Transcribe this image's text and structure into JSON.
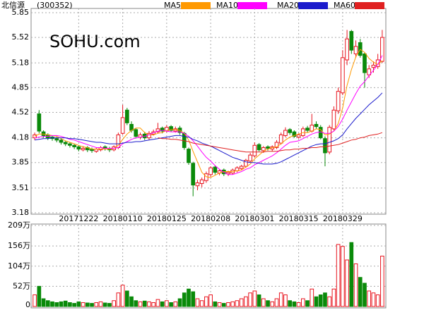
{
  "chart_data": {
    "type": "candlestick",
    "title": "北信源",
    "code": "(300352)",
    "watermark": "SOHU.com",
    "categories": [
      null,
      null,
      null,
      null,
      null,
      null,
      null,
      null,
      null,
      null,
      "20171222",
      null,
      null,
      null,
      null,
      null,
      null,
      null,
      null,
      null,
      "20180110",
      null,
      null,
      null,
      null,
      null,
      null,
      null,
      null,
      null,
      "20180125",
      null,
      null,
      null,
      null,
      null,
      null,
      null,
      null,
      null,
      "20180208",
      null,
      null,
      null,
      null,
      null,
      null,
      null,
      null,
      null,
      "20180301",
      null,
      null,
      null,
      null,
      null,
      null,
      null,
      null,
      null,
      "20180315",
      null,
      null,
      null,
      null,
      null,
      null,
      null,
      null,
      null,
      "20180329",
      null,
      null,
      null,
      null,
      null,
      null,
      null,
      null,
      null
    ],
    "open": [
      4.18,
      4.5,
      4.26,
      4.22,
      4.19,
      4.17,
      4.15,
      4.12,
      4.1,
      4.08,
      4.06,
      4.02,
      4.05,
      4.03,
      4.0,
      4.02,
      4.06,
      4.04,
      4.02,
      4.05,
      4.24,
      4.55,
      4.36,
      4.29,
      4.19,
      4.23,
      4.18,
      4.23,
      4.26,
      4.31,
      4.27,
      4.33,
      4.27,
      4.31,
      4.24,
      4.03,
      3.84,
      3.54,
      3.57,
      3.61,
      3.69,
      3.79,
      3.71,
      3.75,
      3.7,
      3.71,
      3.74,
      3.77,
      3.8,
      3.87,
      3.94,
      4.09,
      4.01,
      4.06,
      4.03,
      4.05,
      4.11,
      4.21,
      4.29,
      4.26,
      4.19,
      4.21,
      4.31,
      4.27,
      4.36,
      4.32,
      4.17,
      3.99,
      4.3,
      4.54,
      4.78,
      5.22,
      5.6,
      5.3,
      5.45,
      5.3,
      5.02,
      5.12,
      5.13,
      5.2
    ],
    "high": [
      4.25,
      4.55,
      4.28,
      4.24,
      4.21,
      4.19,
      4.17,
      4.14,
      4.12,
      4.1,
      4.08,
      4.07,
      4.07,
      4.05,
      4.05,
      4.07,
      4.08,
      4.06,
      4.08,
      4.25,
      4.62,
      4.58,
      4.4,
      4.31,
      4.25,
      4.26,
      4.27,
      4.29,
      4.38,
      4.33,
      4.35,
      4.35,
      4.33,
      4.34,
      4.26,
      4.05,
      3.86,
      3.62,
      3.65,
      3.73,
      3.8,
      3.81,
      3.76,
      3.77,
      3.74,
      3.77,
      3.8,
      3.82,
      3.9,
      3.98,
      4.12,
      4.11,
      4.07,
      4.08,
      4.08,
      4.15,
      4.25,
      4.32,
      4.31,
      4.28,
      4.24,
      4.33,
      4.34,
      4.5,
      4.4,
      4.35,
      4.2,
      4.35,
      4.6,
      4.85,
      5.35,
      5.62,
      5.62,
      5.48,
      5.5,
      5.32,
      5.15,
      5.2,
      5.3,
      5.62
    ],
    "low": [
      4.15,
      4.24,
      4.18,
      4.15,
      4.14,
      4.12,
      4.09,
      4.07,
      4.05,
      4.03,
      4.0,
      4.0,
      3.99,
      3.98,
      3.98,
      4.0,
      4.01,
      3.99,
      4.0,
      4.03,
      4.22,
      4.35,
      4.25,
      4.17,
      4.16,
      4.15,
      4.15,
      4.21,
      4.24,
      4.24,
      4.25,
      4.26,
      4.25,
      4.22,
      4.02,
      3.82,
      3.4,
      3.48,
      3.52,
      3.58,
      3.66,
      3.69,
      3.68,
      3.67,
      3.67,
      3.69,
      3.72,
      3.75,
      3.78,
      3.85,
      3.92,
      4.0,
      3.98,
      4.01,
      4.0,
      4.03,
      4.09,
      4.19,
      4.22,
      4.18,
      4.17,
      4.19,
      4.25,
      4.25,
      4.3,
      4.16,
      3.8,
      3.96,
      4.28,
      4.5,
      4.75,
      5.15,
      5.3,
      5.25,
      5.25,
      4.85,
      4.98,
      5.05,
      5.1,
      5.18
    ],
    "close": [
      4.22,
      4.27,
      4.21,
      4.18,
      4.17,
      4.15,
      4.12,
      4.1,
      4.08,
      4.06,
      4.03,
      4.04,
      4.02,
      4.01,
      4.03,
      4.05,
      4.04,
      4.02,
      4.06,
      4.22,
      4.45,
      4.38,
      4.28,
      4.2,
      4.22,
      4.18,
      4.24,
      4.26,
      4.3,
      4.27,
      4.32,
      4.28,
      4.3,
      4.25,
      4.05,
      3.85,
      3.55,
      3.58,
      3.62,
      3.7,
      3.78,
      3.72,
      3.74,
      3.7,
      3.72,
      3.75,
      3.78,
      3.8,
      3.88,
      3.95,
      4.08,
      4.02,
      4.05,
      4.04,
      4.06,
      4.12,
      4.22,
      4.28,
      4.25,
      4.2,
      4.22,
      4.3,
      4.28,
      4.35,
      4.33,
      4.18,
      3.98,
      4.32,
      4.55,
      4.8,
      5.25,
      5.5,
      5.35,
      5.4,
      5.28,
      5.05,
      5.1,
      5.15,
      5.22,
      5.52
    ],
    "volume": [
      30,
      52,
      20,
      15,
      12,
      10,
      12,
      14,
      10,
      8,
      12,
      10,
      9,
      8,
      10,
      12,
      9,
      8,
      15,
      35,
      55,
      40,
      25,
      15,
      12,
      14,
      12,
      10,
      18,
      12,
      15,
      10,
      12,
      20,
      35,
      45,
      38,
      20,
      15,
      25,
      30,
      12,
      10,
      8,
      10,
      12,
      15,
      20,
      25,
      35,
      40,
      30,
      20,
      15,
      12,
      20,
      35,
      30,
      15,
      12,
      10,
      20,
      15,
      45,
      25,
      30,
      35,
      25,
      45,
      160,
      155,
      120,
      165,
      110,
      75,
      60,
      40,
      35,
      30,
      130
    ],
    "up_color": "#e8141e",
    "down_color": "#0a8a0a",
    "series": [
      {
        "name": "MA5",
        "color": "#ff9900",
        "values": [
          4.2,
          4.23,
          4.23,
          4.22,
          4.21,
          4.2,
          4.17,
          4.14,
          4.12,
          4.1,
          4.08,
          4.06,
          4.05,
          4.03,
          4.03,
          4.03,
          4.03,
          4.03,
          4.04,
          4.08,
          4.16,
          4.23,
          4.28,
          4.31,
          4.31,
          4.25,
          4.22,
          4.22,
          4.24,
          4.25,
          4.28,
          4.29,
          4.29,
          4.28,
          4.24,
          4.15,
          4.0,
          3.86,
          3.72,
          3.66,
          3.65,
          3.68,
          3.71,
          3.73,
          3.73,
          3.73,
          3.74,
          3.75,
          3.79,
          3.83,
          3.9,
          3.95,
          4.0,
          4.03,
          4.05,
          4.06,
          4.1,
          4.15,
          4.19,
          4.21,
          4.23,
          4.25,
          4.25,
          4.27,
          4.3,
          4.29,
          4.22,
          4.23,
          4.27,
          4.37,
          4.58,
          4.88,
          5.09,
          5.26,
          5.36,
          5.32,
          5.24,
          5.19,
          5.16,
          5.21
        ]
      },
      {
        "name": "MA10",
        "color": "#ff00ff",
        "values": [
          4.18,
          4.19,
          4.2,
          4.2,
          4.21,
          4.21,
          4.2,
          4.18,
          4.16,
          4.15,
          4.13,
          4.11,
          4.09,
          4.07,
          4.05,
          4.05,
          4.04,
          4.04,
          4.04,
          4.05,
          4.1,
          4.13,
          4.16,
          4.18,
          4.19,
          4.2,
          4.22,
          4.25,
          4.27,
          4.28,
          4.27,
          4.26,
          4.26,
          4.26,
          4.24,
          4.2,
          4.14,
          4.07,
          3.99,
          3.92,
          3.87,
          3.81,
          3.76,
          3.72,
          3.69,
          3.69,
          3.71,
          3.73,
          3.76,
          3.78,
          3.82,
          3.85,
          3.88,
          3.91,
          3.94,
          3.98,
          4.03,
          4.08,
          4.12,
          4.13,
          4.14,
          4.17,
          4.2,
          4.23,
          4.25,
          4.26,
          4.24,
          4.24,
          4.27,
          4.33,
          4.43,
          4.55,
          4.66,
          4.77,
          4.87,
          4.93,
          5.01,
          5.08,
          5.16,
          5.28
        ]
      },
      {
        "name": "MA20",
        "color": "#1a1acc",
        "values": [
          4.15,
          4.16,
          4.17,
          4.17,
          4.18,
          4.18,
          4.18,
          4.18,
          4.17,
          4.17,
          4.16,
          4.15,
          4.14,
          4.13,
          4.12,
          4.12,
          4.11,
          4.1,
          4.1,
          4.1,
          4.11,
          4.12,
          4.12,
          4.13,
          4.13,
          4.14,
          4.15,
          4.16,
          4.17,
          4.18,
          4.19,
          4.2,
          4.21,
          4.21,
          4.2,
          4.19,
          4.16,
          4.14,
          4.11,
          4.09,
          4.07,
          4.04,
          4.01,
          3.98,
          3.95,
          3.92,
          3.9,
          3.88,
          3.86,
          3.85,
          3.85,
          3.84,
          3.83,
          3.83,
          3.83,
          3.84,
          3.86,
          3.89,
          3.92,
          3.95,
          3.98,
          4.01,
          4.04,
          4.07,
          4.09,
          4.1,
          4.1,
          4.12,
          4.14,
          4.17,
          4.22,
          4.3,
          4.37,
          4.44,
          4.5,
          4.56,
          4.62,
          4.67,
          4.72,
          4.78
        ]
      },
      {
        "name": "MA60",
        "color": "#e02020",
        "values": [
          null,
          null,
          null,
          null,
          null,
          null,
          null,
          null,
          null,
          null,
          null,
          null,
          null,
          null,
          null,
          null,
          null,
          null,
          null,
          null,
          null,
          null,
          null,
          null,
          null,
          null,
          null,
          null,
          4.18,
          4.17,
          4.17,
          4.16,
          4.16,
          4.15,
          4.14,
          4.13,
          4.11,
          4.1,
          4.09,
          4.08,
          4.07,
          4.06,
          4.05,
          4.04,
          4.03,
          4.02,
          4.01,
          4.0,
          3.99,
          3.99,
          3.99,
          3.99,
          3.99,
          4.0,
          4.0,
          4.0,
          4.01,
          4.02,
          4.02,
          4.03,
          4.03,
          4.04,
          4.04,
          4.05,
          4.05,
          4.06,
          4.06,
          4.07,
          4.08,
          4.09,
          4.11,
          4.13,
          4.15,
          4.16,
          4.18,
          4.19,
          4.21,
          4.22,
          4.23,
          4.25
        ]
      }
    ],
    "ylim": [
      3.18,
      5.85
    ],
    "yticks": [
      3.18,
      3.51,
      3.85,
      4.18,
      4.52,
      4.85,
      5.18,
      5.52,
      5.85
    ],
    "volume_ylim": [
      0,
      209
    ],
    "volume_yticks": [
      0,
      {
        "value": 52,
        "label": "52万"
      },
      {
        "value": 104,
        "label": "104万"
      },
      {
        "value": 156,
        "label": "156万"
      },
      {
        "value": 209,
        "label": "209万"
      }
    ],
    "grid": true
  }
}
